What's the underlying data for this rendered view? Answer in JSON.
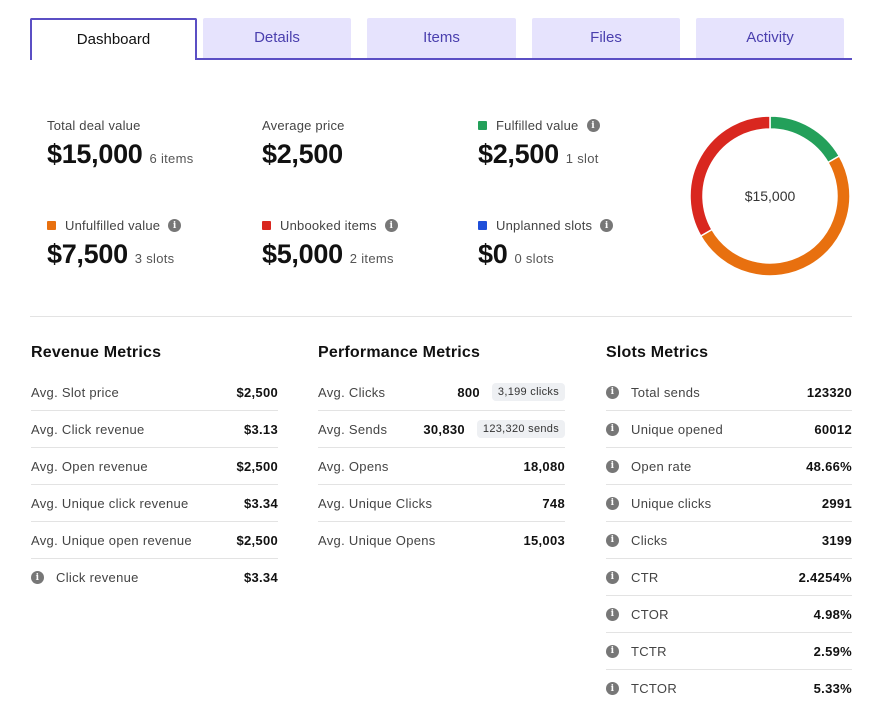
{
  "tabs": [
    "Dashboard",
    "Details",
    "Items",
    "Files",
    "Activity"
  ],
  "summary": {
    "total_deal": {
      "label": "Total deal value",
      "value": "$15,000",
      "sub": "6 items"
    },
    "average_price": {
      "label": "Average price",
      "value": "$2,500",
      "sub": ""
    },
    "fulfilled": {
      "label": "Fulfilled value",
      "value": "$2,500",
      "sub": "1 slot",
      "color": "#23a05a"
    },
    "unfulfilled": {
      "label": "Unfulfilled value",
      "value": "$7,500",
      "sub": "3 slots",
      "color": "#e8700f"
    },
    "unbooked": {
      "label": "Unbooked items",
      "value": "$5,000",
      "sub": "2 items",
      "color": "#d9271f"
    },
    "unplanned": {
      "label": "Unplanned slots",
      "value": "$0",
      "sub": "0 slots",
      "color": "#1f4fd9"
    }
  },
  "donut": {
    "center_label": "$15,000",
    "segments": [
      {
        "name": "Fulfilled",
        "value": 2500,
        "color": "#23a05a"
      },
      {
        "name": "Unfulfilled",
        "value": 7500,
        "color": "#e8700f"
      },
      {
        "name": "Unbooked",
        "value": 5000,
        "color": "#d9271f"
      }
    ]
  },
  "revenue": {
    "title": "Revenue Metrics",
    "rows": [
      {
        "label": "Avg. Slot price",
        "value": "$2,500"
      },
      {
        "label": "Avg. Click revenue",
        "value": "$3.13"
      },
      {
        "label": "Avg. Open revenue",
        "value": "$2,500"
      },
      {
        "label": "Avg. Unique click revenue",
        "value": "$3.34"
      },
      {
        "label": "Avg. Unique open revenue",
        "value": "$2,500"
      },
      {
        "label": "Click revenue",
        "value": "$3.34"
      }
    ]
  },
  "performance": {
    "title": "Performance Metrics",
    "rows": [
      {
        "label": "Avg. Clicks",
        "value": "800",
        "badge": "3,199 clicks"
      },
      {
        "label": "Avg. Sends",
        "value": "30,830",
        "badge": "123,320 sends"
      },
      {
        "label": "Avg. Opens",
        "value": "18,080"
      },
      {
        "label": "Avg. Unique Clicks",
        "value": "748"
      },
      {
        "label": "Avg. Unique Opens",
        "value": "15,003"
      }
    ]
  },
  "slots": {
    "title": "Slots Metrics",
    "rows": [
      {
        "label": "Total sends",
        "value": "123320"
      },
      {
        "label": "Unique opened",
        "value": "60012"
      },
      {
        "label": "Open rate",
        "value": "48.66%"
      },
      {
        "label": "Unique clicks",
        "value": "2991"
      },
      {
        "label": "Clicks",
        "value": "3199"
      },
      {
        "label": "CTR",
        "value": "2.4254%"
      },
      {
        "label": "CTOR",
        "value": "4.98%"
      },
      {
        "label": "TCTR",
        "value": "2.59%"
      },
      {
        "label": "TCTOR",
        "value": "5.33%"
      }
    ]
  }
}
